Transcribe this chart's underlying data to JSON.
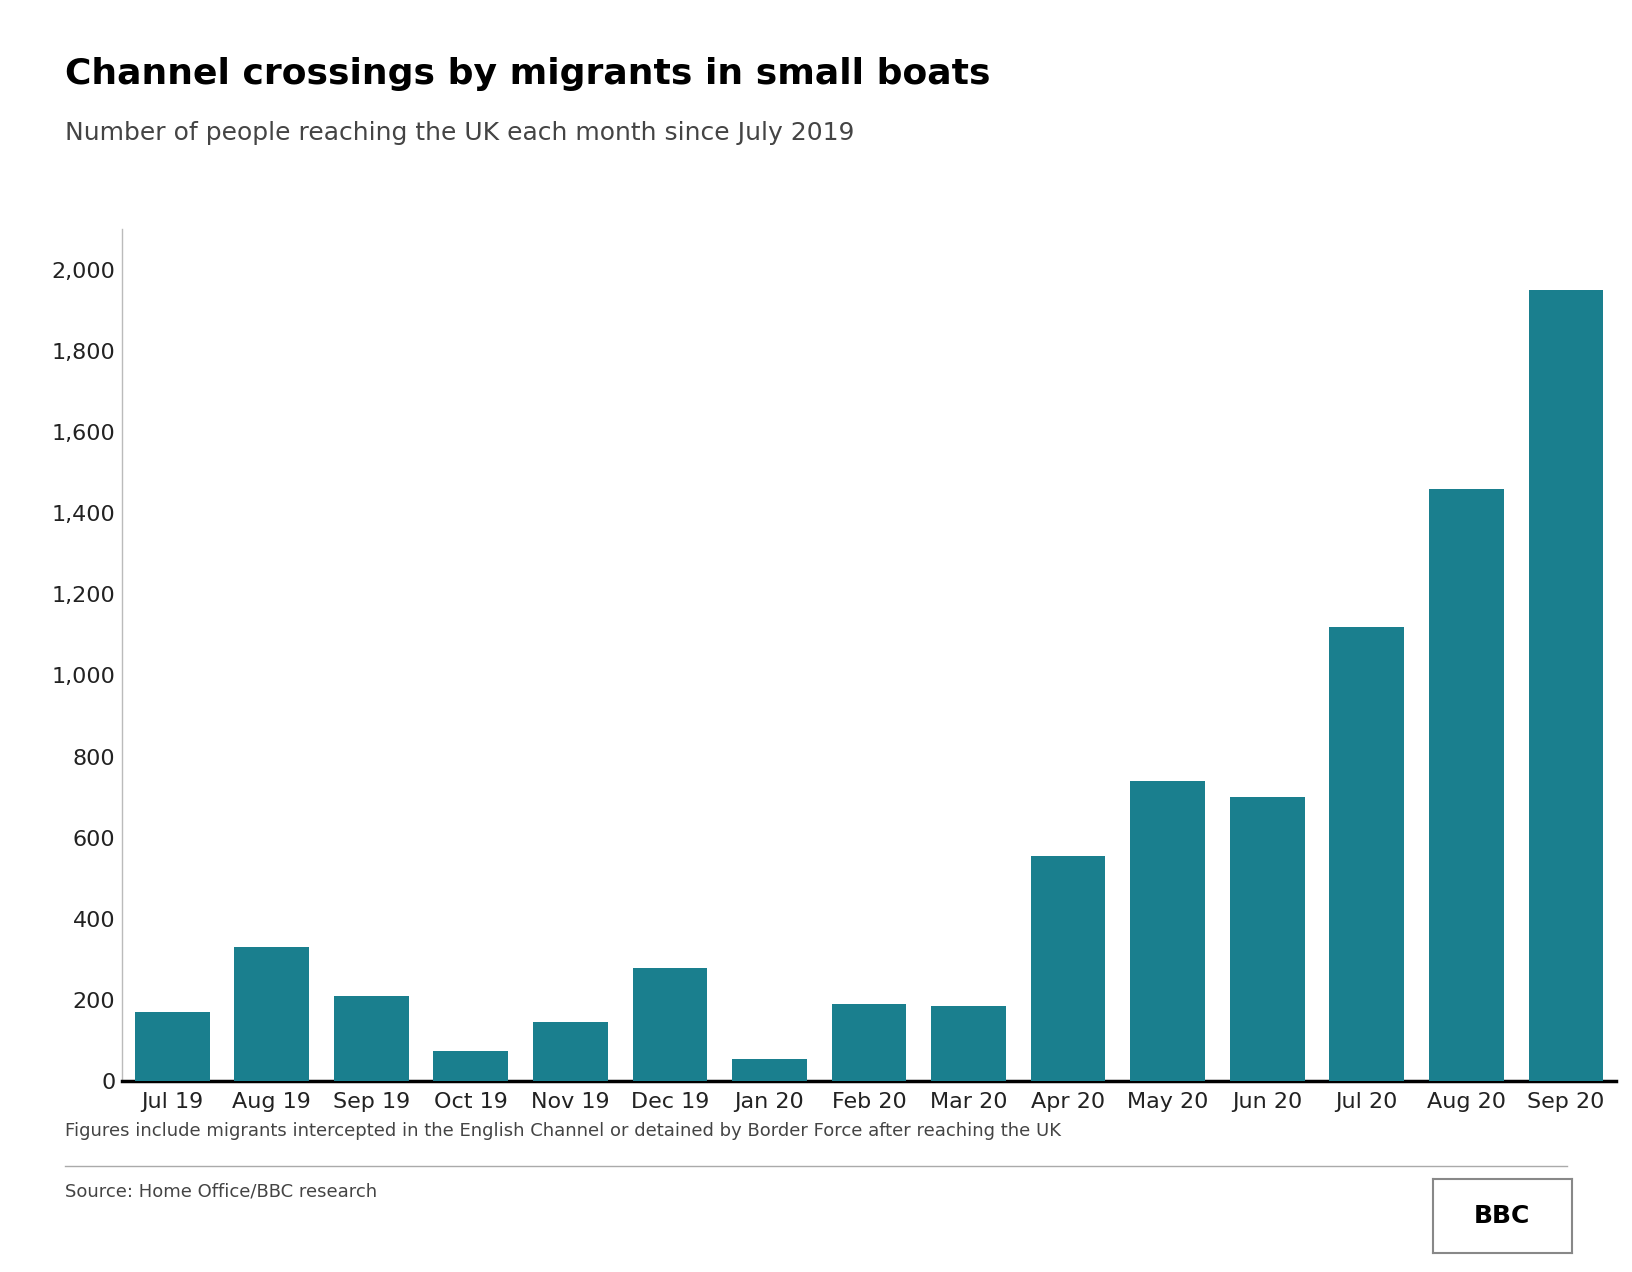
{
  "title": "Channel crossings by migrants in small boats",
  "subtitle": "Number of people reaching the UK each month since July 2019",
  "footnote": "Figures include migrants intercepted in the English Channel or detained by Border Force after reaching the UK",
  "source": "Source: Home Office/BBC research",
  "categories": [
    "Jul 19",
    "Aug 19",
    "Sep 19",
    "Oct 19",
    "Nov 19",
    "Dec 19",
    "Jan 20",
    "Feb 20",
    "Mar 20",
    "Apr 20",
    "May 20",
    "Jun 20",
    "Jul 20",
    "Aug 20",
    "Sep 20"
  ],
  "values": [
    170,
    330,
    210,
    75,
    145,
    280,
    55,
    190,
    185,
    555,
    740,
    700,
    1120,
    1460,
    1950
  ],
  "bar_color": "#1a7f8e",
  "background_color": "#ffffff",
  "ylim": [
    0,
    2100
  ],
  "yticks": [
    0,
    200,
    400,
    600,
    800,
    1000,
    1200,
    1400,
    1600,
    1800,
    2000
  ],
  "title_fontsize": 26,
  "subtitle_fontsize": 18,
  "tick_fontsize": 16,
  "footnote_fontsize": 13,
  "source_fontsize": 13
}
